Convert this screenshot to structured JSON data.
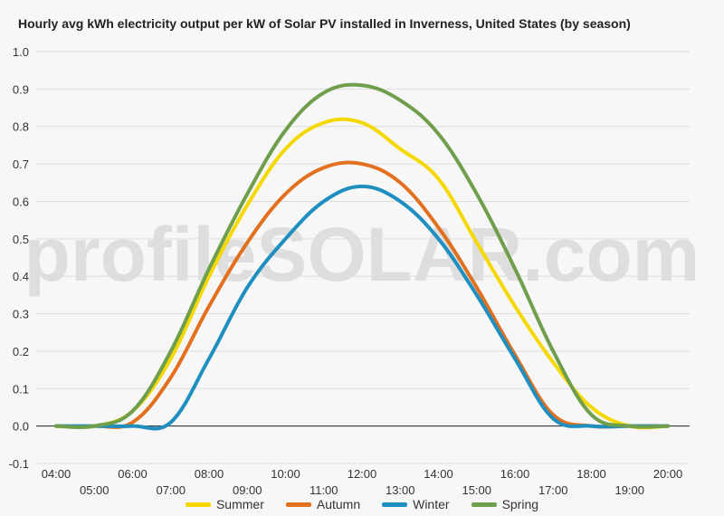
{
  "chart_data": {
    "type": "line",
    "title": "Hourly avg kWh electricity output per kW of Solar PV installed in Inverness, United States (by season)",
    "xlabel": "",
    "ylabel": "",
    "watermark": "profileSOLAR.com",
    "ylim": [
      -0.1,
      1.0
    ],
    "yticks": [
      "-0.1",
      "0.0",
      "0.1",
      "0.2",
      "0.3",
      "0.4",
      "0.5",
      "0.6",
      "0.7",
      "0.8",
      "0.9",
      "1.0"
    ],
    "categories": [
      "04:00",
      "05:00",
      "06:00",
      "07:00",
      "08:00",
      "09:00",
      "10:00",
      "11:00",
      "12:00",
      "13:00",
      "14:00",
      "15:00",
      "16:00",
      "17:00",
      "18:00",
      "19:00",
      "20:00"
    ],
    "grid": true,
    "legend_position": "bottom",
    "series": [
      {
        "name": "Summer",
        "color": "#f5d800",
        "values": [
          0.0,
          0.0,
          0.04,
          0.18,
          0.4,
          0.59,
          0.74,
          0.81,
          0.81,
          0.74,
          0.66,
          0.49,
          0.32,
          0.17,
          0.05,
          0.0,
          0.0
        ]
      },
      {
        "name": "Autumn",
        "color": "#e3701f",
        "values": [
          0.0,
          0.0,
          0.01,
          0.13,
          0.32,
          0.49,
          0.62,
          0.69,
          0.7,
          0.65,
          0.53,
          0.37,
          0.19,
          0.03,
          0.0,
          0.0,
          0.0
        ]
      },
      {
        "name": "Winter",
        "color": "#1f8fc0",
        "values": [
          0.0,
          0.0,
          0.0,
          0.01,
          0.18,
          0.37,
          0.5,
          0.6,
          0.64,
          0.6,
          0.5,
          0.35,
          0.18,
          0.02,
          0.0,
          0.0,
          0.0
        ]
      },
      {
        "name": "Spring",
        "color": "#6f9e4c",
        "values": [
          0.0,
          0.0,
          0.04,
          0.2,
          0.42,
          0.62,
          0.79,
          0.89,
          0.91,
          0.87,
          0.78,
          0.62,
          0.42,
          0.2,
          0.03,
          0.0,
          0.0
        ]
      }
    ]
  }
}
